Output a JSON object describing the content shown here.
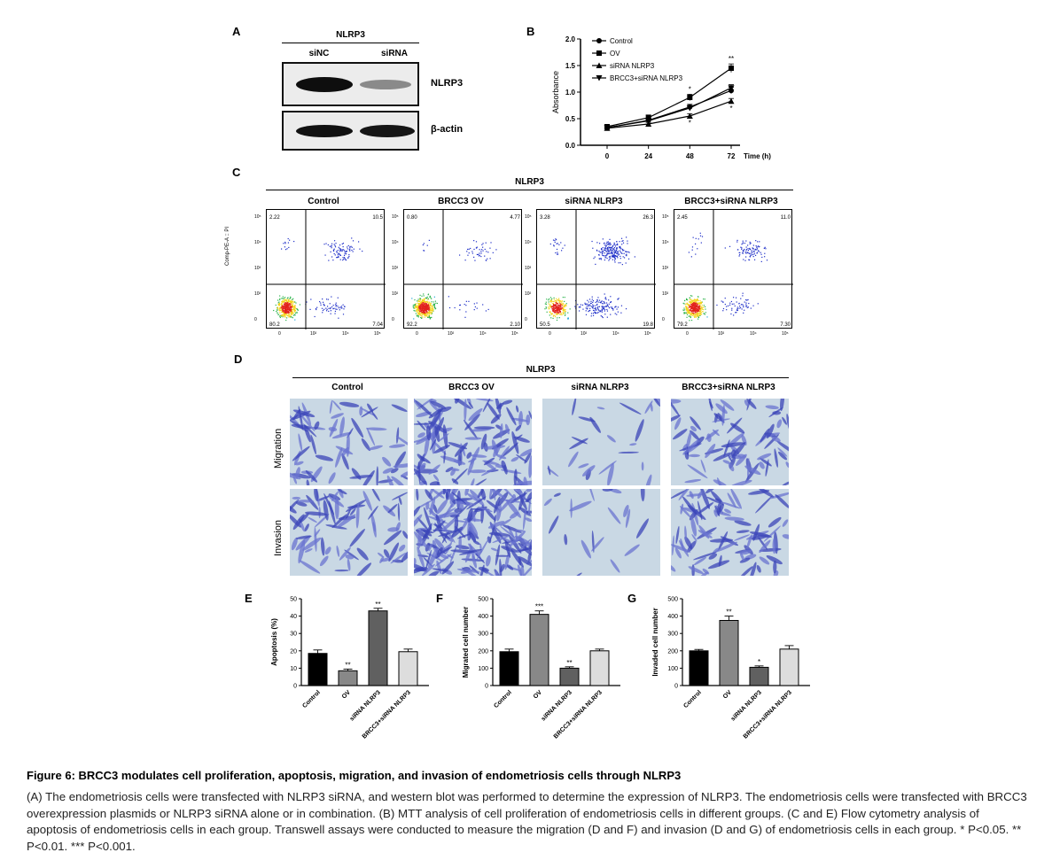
{
  "panel_letters": [
    "A",
    "B",
    "C",
    "D",
    "E",
    "F",
    "G"
  ],
  "panel_a": {
    "header": "NLRP3",
    "lanes": [
      "siNC",
      "siRNA"
    ],
    "blots": [
      "NLRP3",
      "β-actin"
    ]
  },
  "panel_c": {
    "header": "NLRP3",
    "groups": [
      "Control",
      "BRCC3 OV",
      "siRNA NLRP3",
      "BRCC3+siRNA NLRP3"
    ],
    "ylabel": "Comp-PE-A :: PI",
    "quadrants": [
      {
        "ul": "2.22",
        "ur": "10.5",
        "ll": "80.2",
        "lr": "7.04"
      },
      {
        "ul": "0.80",
        "ur": "4.77",
        "ll": "92.2",
        "lr": "2.10"
      },
      {
        "ul": "3.28",
        "ur": "26.3",
        "ll": "50.5",
        "lr": "19.8"
      },
      {
        "ul": "2.45",
        "ur": "11.0",
        "ll": "79.2",
        "lr": "7.30"
      }
    ],
    "ytick_labels": [
      "10⁵",
      "10⁴",
      "10³",
      "10²",
      "0"
    ],
    "xtick_labels": [
      "0",
      "10²",
      "10⁴",
      "10⁵"
    ]
  },
  "panel_d": {
    "header": "NLRP3",
    "groups": [
      "Control",
      "BRCC3 OV",
      "siRNA NLRP3",
      "BRCC3+siRNA NLRP3"
    ],
    "rows": [
      "Migration",
      "Invasion"
    ]
  },
  "caption": {
    "title": "Figure 6: BRCC3 modulates cell proliferation, apoptosis, migration, and invasion of endometriosis cells through NLRP3",
    "body": "(A) The endometriosis cells were transfected with NLRP3 siRNA, and western blot was performed to determine the expression of NLRP3. The endometriosis cells were transfected with BRCC3 overexpression plasmids or NLRP3 siRNA alone or in combination. (B) MTT analysis of cell proliferation of endometriosis cells in different groups. (C and E) Flow cytometry analysis of apoptosis of endometriosis cells in each group. Transwell assays were conducted to measure the migration (D and F) and invasion (D and G) of endometriosis cells in each group. * P<0.05. ** P<0.01. *** P<0.001."
  },
  "chart_data": [
    {
      "panel": "B",
      "type": "line",
      "xlabel": "Time (h)",
      "ylabel": "Absorbance",
      "x": [
        0,
        24,
        48,
        72
      ],
      "xticks": [
        "0",
        "24",
        "48",
        "72"
      ],
      "yticks": [
        "0.0",
        "0.5",
        "1.0",
        "1.5",
        "2.0"
      ],
      "ylim": [
        0,
        2.0
      ],
      "legend_position": "top-left",
      "series": [
        {
          "name": "Control",
          "marker": "circle",
          "values": [
            0.33,
            0.47,
            0.72,
            1.03
          ],
          "errors": [
            0.03,
            0.04,
            0.05,
            0.06
          ],
          "stars": [
            "",
            "",
            "",
            ""
          ]
        },
        {
          "name": "OV",
          "marker": "square",
          "values": [
            0.35,
            0.52,
            0.9,
            1.45
          ],
          "errors": [
            0.03,
            0.05,
            0.06,
            0.08
          ],
          "stars": [
            "",
            "",
            "*",
            "**"
          ]
        },
        {
          "name": "siRNA NLRP3",
          "marker": "triangle-up",
          "values": [
            0.32,
            0.4,
            0.55,
            0.83
          ],
          "errors": [
            0.03,
            0.03,
            0.04,
            0.05
          ],
          "stars": [
            "",
            "",
            "*",
            "*"
          ]
        },
        {
          "name": "BRCC3+siRNA NLRP3",
          "marker": "triangle-down",
          "values": [
            0.33,
            0.46,
            0.7,
            1.08
          ],
          "errors": [
            0.03,
            0.04,
            0.05,
            0.06
          ],
          "stars": [
            "",
            "",
            "",
            ""
          ]
        }
      ]
    },
    {
      "panel": "E",
      "type": "bar",
      "ylabel": "Apoptosis (%)",
      "categories": [
        "Control",
        "OV",
        "siRNA NLRP3",
        "BRCC3+siRNA NLRP3"
      ],
      "values": [
        18.5,
        8.5,
        43,
        19.5
      ],
      "errors": [
        2,
        1,
        1.5,
        1.5
      ],
      "stars": [
        "",
        "**",
        "**",
        ""
      ],
      "colors": [
        "#000000",
        "#888888",
        "#606060",
        "#dddddd"
      ],
      "ylim": [
        0,
        50
      ],
      "yticks": [
        "0",
        "10",
        "20",
        "30",
        "40",
        "50"
      ]
    },
    {
      "panel": "F",
      "type": "bar",
      "ylabel": "Migrated cell number",
      "categories": [
        "Control",
        "OV",
        "siRNA NLRP3",
        "BRCC3+siRNA NLRP3"
      ],
      "values": [
        195,
        410,
        100,
        200
      ],
      "errors": [
        15,
        20,
        8,
        10
      ],
      "stars": [
        "",
        "***",
        "**",
        ""
      ],
      "colors": [
        "#000000",
        "#888888",
        "#606060",
        "#dddddd"
      ],
      "ylim": [
        0,
        500
      ],
      "yticks": [
        "0",
        "100",
        "200",
        "300",
        "400",
        "500"
      ]
    },
    {
      "panel": "G",
      "type": "bar",
      "ylabel": "Invaded cell number",
      "categories": [
        "Control",
        "OV",
        "siRNA NLRP3",
        "BRCC3+siRNA NLRP3"
      ],
      "values": [
        200,
        375,
        105,
        210
      ],
      "errors": [
        8,
        25,
        8,
        20
      ],
      "stars": [
        "",
        "**",
        "*",
        ""
      ],
      "colors": [
        "#000000",
        "#888888",
        "#606060",
        "#dddddd"
      ],
      "ylim": [
        0,
        500
      ],
      "yticks": [
        "0",
        "100",
        "200",
        "300",
        "400",
        "500"
      ]
    }
  ]
}
